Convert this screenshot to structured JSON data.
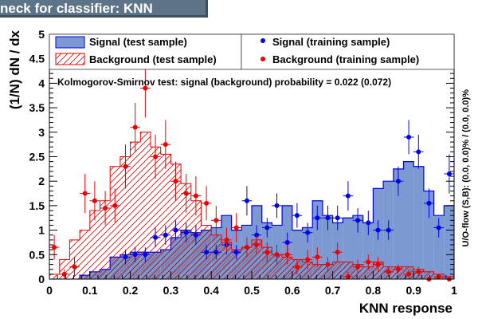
{
  "title": "neck for classifier: KNN",
  "chart_data": {
    "type": "histogram",
    "xlabel": "KNN response",
    "ylabel": "(1/N) dN / dx",
    "side_label": "U/O-flow (S,B): (0.0, 0.0)% / (0.0, 0.0)%",
    "ks_text": "Kolmogorov-Smirnov test: signal (background) probability = 0.022 (0.072)",
    "xlim": [
      0,
      1
    ],
    "ylim": [
      0,
      5
    ],
    "xticks": [
      "0",
      "0.1",
      "0.2",
      "0.3",
      "0.4",
      "0.5",
      "0.6",
      "0.7",
      "0.8",
      "0.9",
      "1"
    ],
    "yticks": [
      "0",
      "0.5",
      "1",
      "1.5",
      "2",
      "2.5",
      "3",
      "3.5",
      "4",
      "4.5",
      "5"
    ],
    "bin_edges": [
      0.0,
      0.025,
      0.05,
      0.075,
      0.1,
      0.125,
      0.15,
      0.175,
      0.2,
      0.225,
      0.25,
      0.275,
      0.3,
      0.325,
      0.35,
      0.375,
      0.4,
      0.425,
      0.45,
      0.475,
      0.5,
      0.525,
      0.55,
      0.575,
      0.6,
      0.625,
      0.65,
      0.675,
      0.7,
      0.725,
      0.75,
      0.775,
      0.8,
      0.825,
      0.85,
      0.875,
      0.9,
      0.925,
      0.95,
      0.975,
      1.0
    ],
    "series": [
      {
        "name": "Signal (test sample)",
        "style": "filled",
        "color": "#7d99d1",
        "edge": "#0000ee",
        "values": [
          0.0,
          0.0,
          0.0,
          0.08,
          0.15,
          0.2,
          0.45,
          0.5,
          0.55,
          0.55,
          0.55,
          0.6,
          0.85,
          1.0,
          0.95,
          1.0,
          1.05,
          1.3,
          1.0,
          1.1,
          1.5,
          1.15,
          1.1,
          1.5,
          1.0,
          1.05,
          1.6,
          1.3,
          1.15,
          1.25,
          1.3,
          1.15,
          1.85,
          2.0,
          2.25,
          2.4,
          2.3,
          1.8,
          1.3,
          1.5
        ]
      },
      {
        "name": "Background (test sample)",
        "style": "hatched",
        "color": "#ee0000",
        "values": [
          0.1,
          0.4,
          0.8,
          1.0,
          1.4,
          1.6,
          2.3,
          2.5,
          2.8,
          3.0,
          2.7,
          2.55,
          2.35,
          1.95,
          1.6,
          1.1,
          0.9,
          0.75,
          0.6,
          0.65,
          0.8,
          0.65,
          0.5,
          0.45,
          0.4,
          0.35,
          0.3,
          0.3,
          0.35,
          0.35,
          0.3,
          0.25,
          0.35,
          0.25,
          0.25,
          0.25,
          0.2,
          0.15,
          0.1,
          0.05
        ]
      },
      {
        "name": "Signal (training sample)",
        "style": "markers",
        "color": "#0000ee",
        "x": [
          0.188,
          0.212,
          0.237,
          0.262,
          0.287,
          0.312,
          0.338,
          0.362,
          0.388,
          0.412,
          0.438,
          0.462,
          0.488,
          0.512,
          0.538,
          0.562,
          0.588,
          0.612,
          0.638,
          0.662,
          0.688,
          0.712,
          0.738,
          0.762,
          0.788,
          0.812,
          0.838,
          0.862,
          0.888,
          0.912,
          0.938,
          0.962,
          0.988
        ],
        "values": [
          0.45,
          0.5,
          0.5,
          0.85,
          0.9,
          1.0,
          0.95,
          0.9,
          0.55,
          0.55,
          0.7,
          0.55,
          1.6,
          0.9,
          1.05,
          1.5,
          0.75,
          1.3,
          0.95,
          1.25,
          1.25,
          1.25,
          1.7,
          1.2,
          1.15,
          1.0,
          1.0,
          2.0,
          2.9,
          2.6,
          1.55,
          1.05,
          2.15
        ],
        "errors": [
          0.15,
          0.15,
          0.15,
          0.2,
          0.2,
          0.2,
          0.2,
          0.2,
          0.15,
          0.15,
          0.2,
          0.15,
          0.3,
          0.2,
          0.2,
          0.25,
          0.2,
          0.25,
          0.2,
          0.25,
          0.25,
          0.25,
          0.3,
          0.25,
          0.25,
          0.2,
          0.2,
          0.3,
          0.35,
          0.35,
          0.3,
          0.2,
          0.4
        ]
      },
      {
        "name": "Background (training sample)",
        "style": "markers",
        "color": "#ee0000",
        "x": [
          0.012,
          0.037,
          0.062,
          0.088,
          0.112,
          0.138,
          0.162,
          0.188,
          0.212,
          0.237,
          0.262,
          0.287,
          0.312,
          0.338,
          0.362,
          0.388,
          0.412,
          0.438,
          0.462,
          0.488,
          0.512,
          0.538,
          0.562,
          0.588,
          0.612,
          0.638,
          0.662,
          0.688,
          0.712,
          0.738,
          0.762,
          0.788,
          0.812,
          0.838,
          0.862,
          0.888,
          0.912,
          0.938,
          0.962,
          0.988
        ],
        "values": [
          0.65,
          0.1,
          0.25,
          1.75,
          1.6,
          1.45,
          1.5,
          2.3,
          3.1,
          3.9,
          2.5,
          2.75,
          2.0,
          1.75,
          1.7,
          1.55,
          1.2,
          0.8,
          1.05,
          0.65,
          0.7,
          0.55,
          0.5,
          0.5,
          0.25,
          0.4,
          0.45,
          0.3,
          0.55,
          0.05,
          0.25,
          0.35,
          0.3,
          0.15,
          0.2,
          0.1,
          0.15,
          0.0,
          0.05,
          0.0
        ],
        "errors": [
          0.25,
          0.1,
          0.2,
          0.4,
          0.4,
          0.35,
          0.35,
          0.45,
          0.5,
          0.6,
          0.45,
          0.5,
          0.4,
          0.4,
          0.4,
          0.35,
          0.3,
          0.25,
          0.3,
          0.2,
          0.2,
          0.2,
          0.2,
          0.2,
          0.15,
          0.2,
          0.2,
          0.15,
          0.2,
          0.1,
          0.15,
          0.15,
          0.15,
          0.1,
          0.1,
          0.1,
          0.1,
          0.05,
          0.05,
          0.05
        ]
      }
    ],
    "legend": {
      "items": [
        "Signal (test sample)",
        "Background (test sample)",
        "Signal (training sample)",
        "Background (training sample)"
      ]
    }
  }
}
